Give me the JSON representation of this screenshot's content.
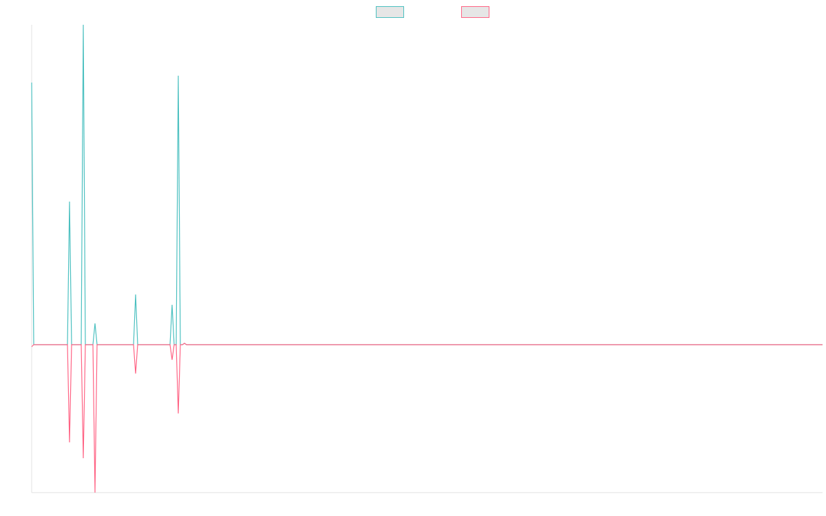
{
  "chart_data": {
    "type": "line",
    "x": [
      0,
      3,
      52,
      55,
      58,
      72,
      75,
      78,
      89,
      92,
      95,
      148,
      151,
      154,
      201,
      204,
      207,
      210,
      213,
      216,
      219,
      222,
      225,
      1149
    ],
    "series": [
      {
        "color": "#4bc0c0",
        "values": [
          381,
          0,
          0,
          208,
          0,
          0,
          465,
          0,
          0,
          31,
          0,
          0,
          73,
          0,
          0,
          58,
          0,
          0,
          391,
          0,
          0,
          2,
          0,
          0
        ]
      },
      {
        "color": "#ff6384",
        "values": [
          -3,
          0,
          0,
          -142,
          0,
          0,
          -165,
          0,
          0,
          -215,
          0,
          0,
          -42,
          0,
          0,
          -22,
          0,
          0,
          -100,
          0,
          0,
          2,
          0,
          0
        ]
      }
    ],
    "xlim": [
      0,
      1149
    ],
    "ylim": [
      -215,
      465
    ],
    "legend": "top"
  }
}
